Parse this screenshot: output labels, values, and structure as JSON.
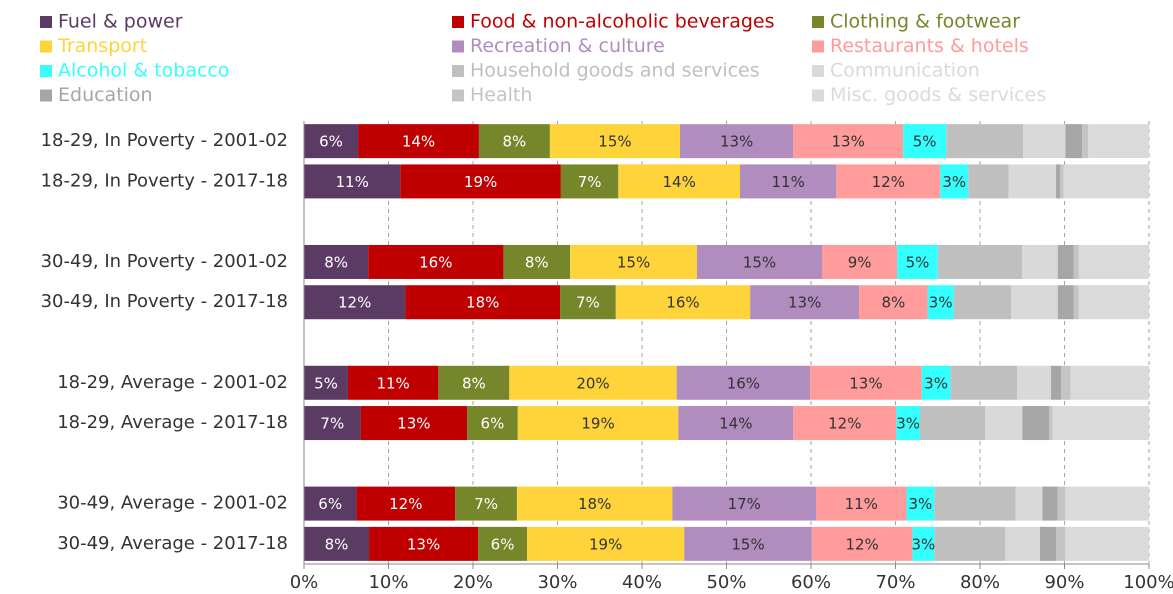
{
  "chart_data": {
    "type": "stacked_barh",
    "categories": [
      "18-29, In Poverty - 2001-02",
      "18-29, In Poverty - 2017-18",
      null,
      "30-49, In Poverty - 2001-02",
      "30-49, In Poverty - 2017-18",
      null,
      "18-29, Average - 2001-02",
      "18-29, Average - 2017-18",
      null,
      "30-49, Average - 2001-02",
      "30-49, Average - 2017-18"
    ],
    "series": [
      {
        "name": "Fuel & power",
        "color": "#5b3a63",
        "label_color": "#ffffff",
        "values": [
          6.4,
          11.4,
          null,
          7.6,
          12.0,
          null,
          5.2,
          6.7,
          null,
          6.2,
          7.7
        ],
        "value_labels": [
          "6%",
          "11%",
          null,
          "8%",
          "12%",
          null,
          "5%",
          "7%",
          null,
          "6%",
          "8%"
        ]
      },
      {
        "name": "Food & non-alcoholic beverages",
        "color": "#c00000",
        "label_color": "#ffffff",
        "values": [
          14.3,
          19.0,
          null,
          16.0,
          18.3,
          null,
          10.7,
          12.6,
          null,
          11.7,
          12.9
        ],
        "value_labels": [
          "14%",
          "19%",
          null,
          "16%",
          "18%",
          null,
          "11%",
          "13%",
          null,
          "12%",
          "13%"
        ]
      },
      {
        "name": "Clothing & footwear",
        "color": "#76862a",
        "label_color": "#ffffff",
        "values": [
          8.4,
          6.8,
          null,
          7.9,
          6.6,
          null,
          8.4,
          6.0,
          null,
          7.3,
          5.8
        ],
        "value_labels": [
          "8%",
          "7%",
          null,
          "8%",
          "7%",
          null,
          "8%",
          "6%",
          null,
          "7%",
          "6%"
        ]
      },
      {
        "name": "Transport",
        "color": "#ffd43b",
        "label_color": "#333333",
        "values": [
          15.4,
          14.4,
          null,
          15.0,
          15.9,
          null,
          19.8,
          19.0,
          null,
          18.4,
          18.6
        ],
        "value_labels": [
          "15%",
          "14%",
          null,
          "15%",
          "16%",
          null,
          "20%",
          "19%",
          null,
          "18%",
          "19%"
        ]
      },
      {
        "name": "Recreation & culture",
        "color": "#b18cbf",
        "label_color": "#333333",
        "values": [
          13.4,
          11.4,
          null,
          14.8,
          12.9,
          null,
          15.8,
          13.6,
          null,
          17.0,
          15.1
        ],
        "value_labels": [
          "13%",
          "11%",
          null,
          "15%",
          "13%",
          null,
          "16%",
          "14%",
          null,
          "17%",
          "15%"
        ]
      },
      {
        "name": "Restaurants & hotels",
        "color": "#ff9b9b",
        "label_color": "#333333",
        "values": [
          13.0,
          12.3,
          null,
          8.9,
          8.1,
          null,
          13.2,
          12.2,
          null,
          10.7,
          11.9
        ],
        "value_labels": [
          "13%",
          "12%",
          null,
          "9%",
          "8%",
          null,
          "13%",
          "12%",
          null,
          "11%",
          "12%"
        ]
      },
      {
        "name": "Alcohol & tobacco",
        "color": "#33ffff",
        "label_color": "#333333",
        "values": [
          5.1,
          3.3,
          null,
          4.8,
          3.1,
          null,
          3.4,
          2.8,
          null,
          3.3,
          2.6
        ],
        "value_labels": [
          "5%",
          "3%",
          null,
          "5%",
          "3%",
          null,
          "3%",
          "3%",
          null,
          "3%",
          "3%"
        ]
      },
      {
        "name": "Household goods and services",
        "color": "#bfbfbf",
        "values": [
          9.1,
          4.8,
          null,
          10.0,
          6.8,
          null,
          7.9,
          7.7,
          null,
          9.6,
          8.4
        ]
      },
      {
        "name": "Communication",
        "color": "#d9d9d9",
        "values": [
          5.0,
          5.6,
          null,
          4.2,
          5.5,
          null,
          4.0,
          4.4,
          null,
          3.2,
          4.1
        ]
      },
      {
        "name": "Education",
        "color": "#a6a6a6",
        "values": [
          2.0,
          0.5,
          null,
          1.9,
          1.9,
          null,
          1.2,
          3.2,
          null,
          1.8,
          1.9
        ]
      },
      {
        "name": "Health",
        "color": "#c4c4c4",
        "values": [
          0.7,
          0.4,
          null,
          0.6,
          0.6,
          null,
          1.1,
          0.4,
          null,
          0.9,
          1.1
        ]
      },
      {
        "name": "Misc. goods & services",
        "color": "#dadada",
        "values": [
          7.2,
          10.1,
          null,
          8.3,
          8.3,
          null,
          9.3,
          11.4,
          null,
          9.9,
          9.9
        ]
      }
    ],
    "xlim": [
      0,
      100
    ],
    "xticks": [
      {
        "value": 0,
        "label": "0%"
      },
      {
        "value": 10,
        "label": "10%"
      },
      {
        "value": 20,
        "label": "20%"
      },
      {
        "value": 30,
        "label": "30%"
      },
      {
        "value": 40,
        "label": "40%"
      },
      {
        "value": 50,
        "label": "50%"
      },
      {
        "value": 60,
        "label": "60%"
      },
      {
        "value": 70,
        "label": "70%"
      },
      {
        "value": 80,
        "label": "80%"
      },
      {
        "value": 90,
        "label": "90%"
      },
      {
        "value": 100,
        "label": "100%"
      }
    ],
    "grid": true,
    "legend": "top"
  }
}
